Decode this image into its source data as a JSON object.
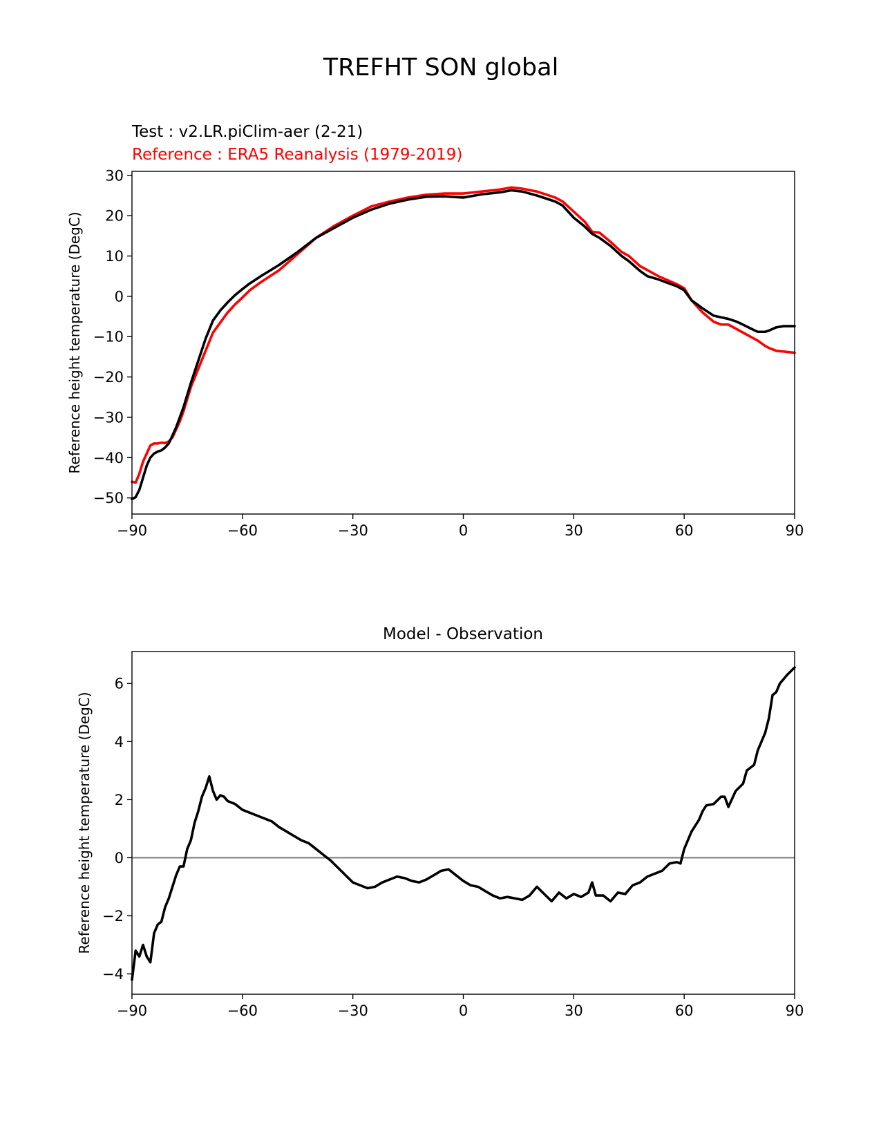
{
  "figure": {
    "title": "TREFHT SON global"
  },
  "chart_data": [
    {
      "type": "line",
      "title_test": "Test : v2.LR.piClim-aer (2-21)",
      "title_ref": "Reference : ERA5 Reanalysis (1979-2019)",
      "ylabel": "Reference height temperature (DegC)",
      "xlim": [
        -90,
        90
      ],
      "ylim": [
        -54,
        31
      ],
      "xticks": [
        -90,
        -60,
        -30,
        0,
        30,
        60,
        90
      ],
      "xtick_labels": [
        "−90",
        "−60",
        "−30",
        "0",
        "30",
        "60",
        "90"
      ],
      "yticks": [
        -50,
        -40,
        -30,
        -20,
        -10,
        0,
        10,
        20,
        30
      ],
      "ytick_labels": [
        "−50",
        "−40",
        "−30",
        "−20",
        "−10",
        "0",
        "10",
        "20",
        "30"
      ],
      "grid": false,
      "colors": {
        "test": "#000000",
        "reference": "#ff0000"
      },
      "series": [
        {
          "role": "reference",
          "color": "#ff0000",
          "x": [
            -90,
            -89,
            -88,
            -87,
            -86,
            -85,
            -84,
            -83,
            -82,
            -81,
            -80,
            -79,
            -78,
            -77,
            -76,
            -75,
            -74,
            -72,
            -70,
            -68,
            -66,
            -64,
            -62,
            -60,
            -58,
            -55,
            -50,
            -45,
            -40,
            -35,
            -30,
            -25,
            -20,
            -15,
            -10,
            -5,
            0,
            5,
            10,
            13,
            16,
            20,
            25,
            27,
            30,
            33,
            35,
            37,
            40,
            43,
            45,
            48,
            50,
            53,
            55,
            58,
            60,
            62,
            65,
            68,
            70,
            72,
            74,
            75,
            77,
            79,
            80,
            82,
            83,
            85,
            87,
            90
          ],
          "y": [
            -46,
            -46.2,
            -44,
            -41,
            -39,
            -37,
            -36.5,
            -36.5,
            -36.3,
            -36.4,
            -36,
            -35,
            -33,
            -31,
            -28.5,
            -25.5,
            -22.5,
            -18,
            -13.5,
            -9,
            -6.5,
            -4,
            -2,
            -0.3,
            1.5,
            3.5,
            6.5,
            10.5,
            14.5,
            17.5,
            20,
            22.3,
            23.5,
            24.5,
            25.2,
            25.5,
            25.5,
            26,
            26.5,
            27,
            26.7,
            26,
            24.5,
            23.5,
            21,
            18.5,
            16,
            15.8,
            13.5,
            11,
            10,
            7.5,
            6.5,
            5,
            4.2,
            3,
            2,
            -1,
            -4,
            -6.3,
            -7,
            -7,
            -8,
            -8.5,
            -9.5,
            -10.5,
            -11,
            -12.3,
            -12.8,
            -13.5,
            -13.7,
            -14
          ]
        },
        {
          "role": "test",
          "color": "#000000",
          "x": [
            -90,
            -89,
            -88,
            -87,
            -86,
            -85,
            -84,
            -83,
            -82,
            -81,
            -80,
            -79,
            -78,
            -77,
            -76,
            -75,
            -74,
            -72,
            -70,
            -68,
            -66,
            -64,
            -62,
            -60,
            -58,
            -55,
            -50,
            -45,
            -40,
            -35,
            -30,
            -25,
            -20,
            -15,
            -10,
            -5,
            0,
            5,
            10,
            13,
            16,
            20,
            25,
            27,
            30,
            33,
            35,
            37,
            40,
            43,
            45,
            48,
            50,
            53,
            55,
            58,
            60,
            62,
            65,
            68,
            70,
            72,
            74,
            75,
            77,
            79,
            80,
            82,
            83,
            85,
            87,
            90
          ],
          "y": [
            -50.3,
            -49.8,
            -48,
            -45,
            -42,
            -40,
            -39,
            -38.5,
            -38.2,
            -37.5,
            -36.5,
            -34.5,
            -32.5,
            -30,
            -27.5,
            -24.5,
            -21.5,
            -16,
            -10.5,
            -6,
            -3.5,
            -1.5,
            0.3,
            1.8,
            3.2,
            5,
            7.8,
            11,
            14.5,
            17,
            19.5,
            21.5,
            23,
            24,
            24.7,
            24.8,
            24.5,
            25.3,
            25.8,
            26.3,
            26,
            25,
            23.5,
            22.5,
            19.5,
            17.3,
            15.5,
            14.5,
            12.5,
            10,
            8.7,
            6.3,
            5,
            4.2,
            3.5,
            2.5,
            1.5,
            -1,
            -3,
            -4.8,
            -5.2,
            -5.6,
            -6.2,
            -6.6,
            -7.5,
            -8.4,
            -8.8,
            -8.8,
            -8.5,
            -7.7,
            -7.4,
            -7.4
          ]
        }
      ]
    },
    {
      "type": "line",
      "title": "Model - Observation",
      "ylabel": "Reference height temperature (DegC)",
      "xlim": [
        -90,
        90
      ],
      "ylim": [
        -4.7,
        7.1
      ],
      "xticks": [
        -90,
        -60,
        -30,
        0,
        30,
        60,
        90
      ],
      "xtick_labels": [
        "−90",
        "−60",
        "−30",
        "0",
        "30",
        "60",
        "90"
      ],
      "yticks": [
        -4,
        -2,
        0,
        2,
        4,
        6
      ],
      "ytick_labels": [
        "−4",
        "−2",
        "0",
        "2",
        "4",
        "6"
      ],
      "grid": false,
      "zero_line": {
        "y": 0,
        "color": "#808080"
      },
      "series": [
        {
          "role": "difference",
          "color": "#000000",
          "x": [
            -90,
            -89,
            -88,
            -87,
            -86,
            -85,
            -84,
            -83,
            -82,
            -81,
            -80,
            -79,
            -78,
            -77,
            -76,
            -75,
            -74,
            -73,
            -72,
            -71,
            -70,
            -69,
            -68,
            -67,
            -66,
            -65,
            -64,
            -63,
            -62,
            -60,
            -58,
            -56,
            -54,
            -52,
            -50,
            -48,
            -46,
            -44,
            -42,
            -40,
            -38,
            -36,
            -34,
            -32,
            -30,
            -28,
            -26,
            -24,
            -22,
            -20,
            -18,
            -16,
            -14,
            -12,
            -10,
            -8,
            -6,
            -4,
            -2,
            0,
            2,
            4,
            6,
            8,
            10,
            12,
            14,
            16,
            18,
            20,
            22,
            24,
            26,
            28,
            30,
            32,
            34,
            35,
            36,
            38,
            40,
            42,
            44,
            46,
            48,
            50,
            52,
            54,
            56,
            58,
            59,
            60,
            61,
            62,
            63,
            64,
            65,
            66,
            68,
            70,
            71,
            72,
            74,
            76,
            77,
            78,
            79,
            80,
            81,
            82,
            83,
            84,
            85,
            86,
            88,
            90
          ],
          "y": [
            -4.2,
            -3.2,
            -3.4,
            -3.0,
            -3.4,
            -3.6,
            -2.6,
            -2.3,
            -2.2,
            -1.7,
            -1.4,
            -1.0,
            -0.6,
            -0.3,
            -0.3,
            0.3,
            0.6,
            1.2,
            1.6,
            2.1,
            2.4,
            2.8,
            2.3,
            2.0,
            2.15,
            2.1,
            1.95,
            1.9,
            1.85,
            1.65,
            1.55,
            1.45,
            1.35,
            1.25,
            1.05,
            0.9,
            0.75,
            0.6,
            0.5,
            0.3,
            0.1,
            -0.1,
            -0.35,
            -0.6,
            -0.85,
            -0.95,
            -1.05,
            -1.0,
            -0.85,
            -0.75,
            -0.65,
            -0.7,
            -0.8,
            -0.85,
            -0.75,
            -0.6,
            -0.45,
            -0.4,
            -0.6,
            -0.8,
            -0.95,
            -1.0,
            -1.15,
            -1.3,
            -1.4,
            -1.35,
            -1.4,
            -1.45,
            -1.3,
            -1.0,
            -1.25,
            -1.5,
            -1.2,
            -1.4,
            -1.25,
            -1.35,
            -1.2,
            -0.85,
            -1.3,
            -1.3,
            -1.5,
            -1.2,
            -1.25,
            -0.95,
            -0.85,
            -0.65,
            -0.55,
            -0.45,
            -0.2,
            -0.15,
            -0.2,
            0.3,
            0.6,
            0.9,
            1.1,
            1.3,
            1.6,
            1.8,
            1.85,
            2.1,
            2.1,
            1.75,
            2.3,
            2.55,
            3.0,
            3.1,
            3.2,
            3.7,
            4.0,
            4.3,
            4.8,
            5.6,
            5.7,
            6.0,
            6.3,
            6.55
          ]
        }
      ]
    }
  ]
}
